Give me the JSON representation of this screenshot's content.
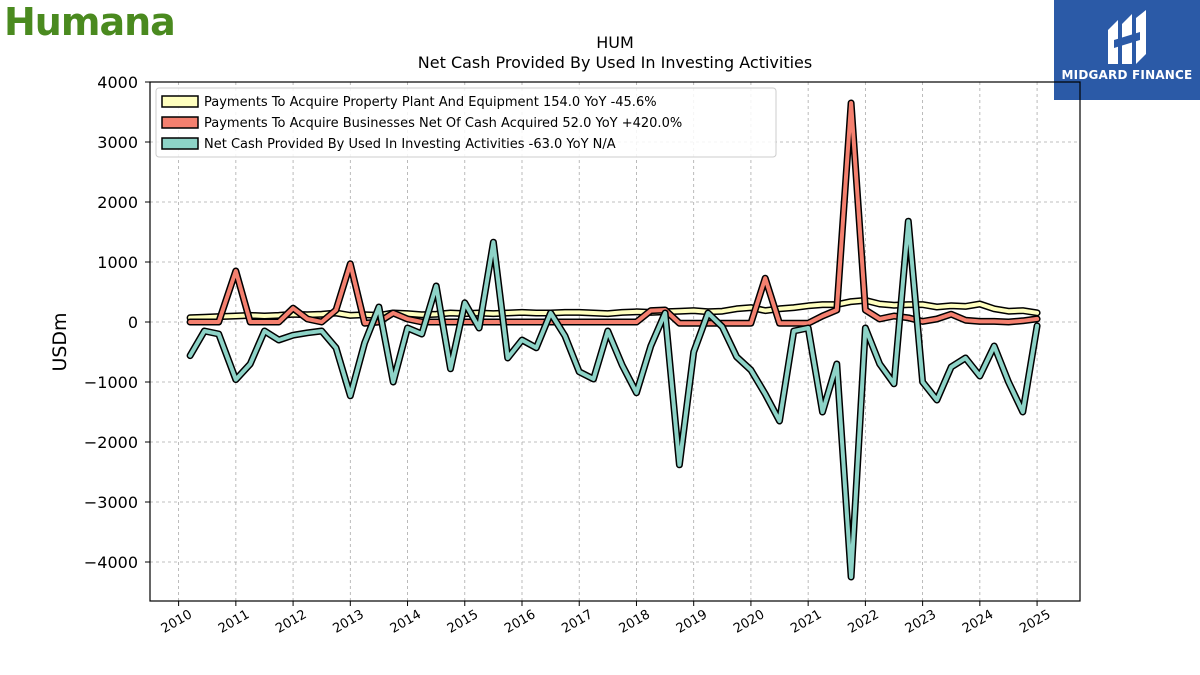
{
  "branding": {
    "company_logo_text": "Humana",
    "company_logo_color": "#4a8a1f",
    "badge_text": "MIDGARD FINANCE",
    "badge_color": "#2b5aa7"
  },
  "chart_data": {
    "type": "line",
    "title": "HUM",
    "subtitle": "Net Cash Provided By Used In Investing Activities",
    "ylabel": "USDm",
    "xlabel": "",
    "ylim": [
      -4650,
      4000
    ],
    "xlim": [
      2009.5,
      2025.75
    ],
    "yticks": [
      -4000,
      -3000,
      -2000,
      -1000,
      0,
      1000,
      2000,
      3000,
      4000
    ],
    "ytick_labels": [
      "−4000",
      "−3000",
      "−2000",
      "−1000",
      "0",
      "1000",
      "2000",
      "3000",
      "4000"
    ],
    "xticks": [
      2010,
      2011,
      2012,
      2013,
      2014,
      2015,
      2016,
      2017,
      2018,
      2019,
      2020,
      2021,
      2022,
      2023,
      2024,
      2025
    ],
    "grid": true,
    "legend_position": "top-left",
    "x": [
      2010.2,
      2010.45,
      2010.7,
      2011.0,
      2011.25,
      2011.5,
      2011.75,
      2012.0,
      2012.25,
      2012.5,
      2012.75,
      2013.0,
      2013.25,
      2013.5,
      2013.75,
      2014.0,
      2014.25,
      2014.5,
      2014.75,
      2015.0,
      2015.25,
      2015.5,
      2015.75,
      2016.0,
      2016.25,
      2016.5,
      2016.75,
      2017.0,
      2017.25,
      2017.5,
      2017.75,
      2018.0,
      2018.25,
      2018.5,
      2018.75,
      2019.0,
      2019.25,
      2019.5,
      2019.75,
      2020.0,
      2020.25,
      2020.5,
      2020.75,
      2021.0,
      2021.25,
      2021.5,
      2021.75,
      2022.0,
      2022.25,
      2022.5,
      2022.75,
      2023.0,
      2023.25,
      2023.5,
      2023.75,
      2024.0,
      2024.25,
      2024.5,
      2024.75,
      2025.0
    ],
    "series": [
      {
        "name": "Payments To Acquire Property Plant And Equipment",
        "legend_label": "Payments To Acquire Property Plant And Equipment  154.0 YoY -45.6%",
        "color": "#ffffbf",
        "values": [
          70,
          80,
          90,
          100,
          110,
          100,
          110,
          130,
          120,
          130,
          150,
          110,
          120,
          110,
          150,
          140,
          120,
          130,
          150,
          140,
          150,
          140,
          150,
          160,
          150,
          150,
          160,
          160,
          150,
          140,
          160,
          170,
          160,
          170,
          180,
          190,
          170,
          180,
          220,
          240,
          190,
          220,
          240,
          270,
          290,
          290,
          340,
          360,
          300,
          280,
          290,
          290,
          250,
          270,
          260,
          300,
          220,
          180,
          190,
          154
        ]
      },
      {
        "name": "Payments To Acquire Businesses Net Of Cash Acquired",
        "legend_label": "Payments To Acquire Businesses Net Of Cash Acquired  52.0 YoY +420.0%",
        "color": "#f4806f",
        "values": [
          0,
          0,
          0,
          850,
          0,
          0,
          0,
          230,
          50,
          0,
          200,
          970,
          -20,
          0,
          150,
          50,
          0,
          0,
          0,
          0,
          0,
          0,
          0,
          0,
          0,
          0,
          0,
          0,
          0,
          0,
          0,
          0,
          190,
          200,
          -20,
          -20,
          -20,
          -20,
          -20,
          -20,
          730,
          -20,
          -20,
          -20,
          100,
          200,
          3650,
          200,
          50,
          100,
          70,
          10,
          50,
          130,
          30,
          10,
          10,
          0,
          20,
          52
        ]
      },
      {
        "name": "Net Cash Provided By Used In Investing Activities",
        "legend_label": "Net Cash Provided By Used In Investing Activities  -63.0 YoY N/A",
        "color": "#8dd3c7",
        "values": [
          -560,
          -150,
          -200,
          -960,
          -700,
          -150,
          -300,
          -220,
          -180,
          -150,
          -430,
          -1230,
          -350,
          250,
          -1000,
          -100,
          -200,
          600,
          -780,
          320,
          -100,
          1330,
          -600,
          -300,
          -430,
          150,
          -230,
          -830,
          -950,
          -150,
          -720,
          -1180,
          -400,
          150,
          -2380,
          -500,
          150,
          -80,
          -580,
          -800,
          -1200,
          -1650,
          -150,
          -100,
          -1500,
          -700,
          -4250,
          -100,
          -700,
          -1030,
          1680,
          -1000,
          -1300,
          -750,
          -600,
          -900,
          -400,
          -1000,
          -1500,
          -63
        ]
      }
    ]
  }
}
